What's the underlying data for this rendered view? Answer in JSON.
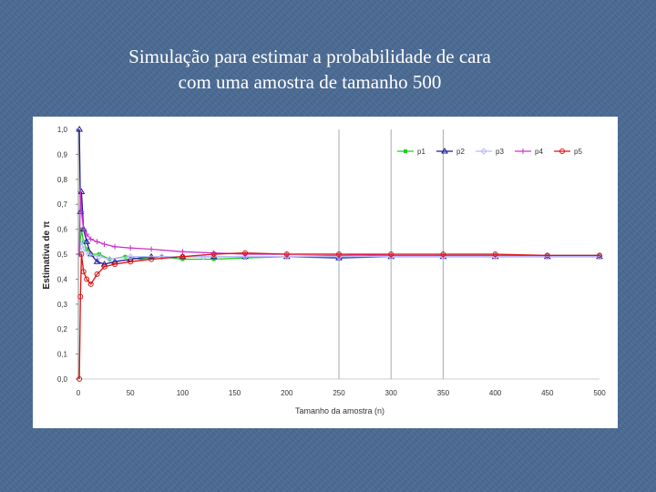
{
  "slide": {
    "title_line1": "Simulação para estimar a probabilidade de cara",
    "title_line2": "com uma amostra de tamanho 500"
  },
  "chart_data": {
    "type": "line",
    "title": "",
    "xlabel": "Tamanho da amostra (n)",
    "ylabel": "Estimativa de π",
    "xlim": [
      0,
      500
    ],
    "ylim": [
      0,
      1
    ],
    "x_ticks": [
      0,
      50,
      100,
      150,
      200,
      250,
      300,
      350,
      400,
      450,
      500
    ],
    "y_ticks": [
      "0,0",
      "0,1",
      "0,2",
      "0,3",
      "0,4",
      "0,5",
      "0,6",
      "0,7",
      "0,8",
      "0,9",
      "1,0"
    ],
    "vertical_reference_lines": [
      250,
      300,
      350
    ],
    "legend_position": "top-right",
    "series": [
      {
        "name": "p1",
        "color": "#22cc22",
        "marker": "square",
        "points": [
          [
            1,
            0.5
          ],
          [
            3,
            0.6
          ],
          [
            5,
            0.55
          ],
          [
            8,
            0.52
          ],
          [
            12,
            0.5
          ],
          [
            20,
            0.5
          ],
          [
            30,
            0.48
          ],
          [
            45,
            0.49
          ],
          [
            60,
            0.48
          ],
          [
            80,
            0.49
          ],
          [
            100,
            0.48
          ],
          [
            130,
            0.48
          ],
          [
            160,
            0.485
          ],
          [
            200,
            0.49
          ],
          [
            250,
            0.495
          ],
          [
            300,
            0.49
          ],
          [
            350,
            0.495
          ],
          [
            400,
            0.495
          ],
          [
            450,
            0.495
          ],
          [
            500,
            0.495
          ]
        ]
      },
      {
        "name": "p2",
        "color": "#1a1aa0",
        "marker": "triangle",
        "points": [
          [
            1,
            1.0
          ],
          [
            2,
            0.67
          ],
          [
            3,
            0.75
          ],
          [
            5,
            0.6
          ],
          [
            8,
            0.55
          ],
          [
            12,
            0.5
          ],
          [
            18,
            0.47
          ],
          [
            25,
            0.46
          ],
          [
            35,
            0.47
          ],
          [
            50,
            0.48
          ],
          [
            70,
            0.49
          ],
          [
            100,
            0.49
          ],
          [
            130,
            0.49
          ],
          [
            160,
            0.49
          ],
          [
            200,
            0.49
          ],
          [
            250,
            0.485
          ],
          [
            300,
            0.49
          ],
          [
            350,
            0.49
          ],
          [
            400,
            0.49
          ],
          [
            450,
            0.49
          ],
          [
            500,
            0.49
          ]
        ]
      },
      {
        "name": "p3",
        "color": "#bbbbff",
        "marker": "diamond",
        "points": [
          [
            1,
            0.5
          ],
          [
            3,
            0.55
          ],
          [
            5,
            0.52
          ],
          [
            10,
            0.5
          ],
          [
            20,
            0.49
          ],
          [
            30,
            0.48
          ],
          [
            50,
            0.49
          ],
          [
            80,
            0.49
          ],
          [
            120,
            0.49
          ],
          [
            160,
            0.49
          ],
          [
            200,
            0.49
          ],
          [
            250,
            0.49
          ],
          [
            300,
            0.49
          ],
          [
            350,
            0.49
          ],
          [
            400,
            0.49
          ],
          [
            450,
            0.49
          ],
          [
            500,
            0.49
          ]
        ]
      },
      {
        "name": "p4",
        "color": "#cc33cc",
        "marker": "plus",
        "points": [
          [
            1,
            0.5
          ],
          [
            2,
            0.75
          ],
          [
            3,
            0.67
          ],
          [
            5,
            0.6
          ],
          [
            8,
            0.58
          ],
          [
            12,
            0.56
          ],
          [
            18,
            0.55
          ],
          [
            25,
            0.54
          ],
          [
            35,
            0.53
          ],
          [
            50,
            0.525
          ],
          [
            70,
            0.52
          ],
          [
            100,
            0.51
          ],
          [
            130,
            0.505
          ],
          [
            160,
            0.5
          ],
          [
            200,
            0.5
          ],
          [
            250,
            0.5
          ],
          [
            300,
            0.495
          ],
          [
            350,
            0.495
          ],
          [
            400,
            0.495
          ],
          [
            450,
            0.495
          ],
          [
            500,
            0.495
          ]
        ]
      },
      {
        "name": "p5",
        "color": "#dd1111",
        "marker": "circle",
        "points": [
          [
            1,
            0.0
          ],
          [
            2,
            0.33
          ],
          [
            3,
            0.5
          ],
          [
            5,
            0.43
          ],
          [
            8,
            0.4
          ],
          [
            12,
            0.38
          ],
          [
            18,
            0.42
          ],
          [
            25,
            0.45
          ],
          [
            35,
            0.46
          ],
          [
            50,
            0.47
          ],
          [
            70,
            0.48
          ],
          [
            100,
            0.49
          ],
          [
            130,
            0.5
          ],
          [
            160,
            0.505
          ],
          [
            200,
            0.5
          ],
          [
            250,
            0.5
          ],
          [
            300,
            0.5
          ],
          [
            350,
            0.5
          ],
          [
            400,
            0.5
          ],
          [
            450,
            0.495
          ],
          [
            500,
            0.495
          ]
        ]
      }
    ]
  }
}
